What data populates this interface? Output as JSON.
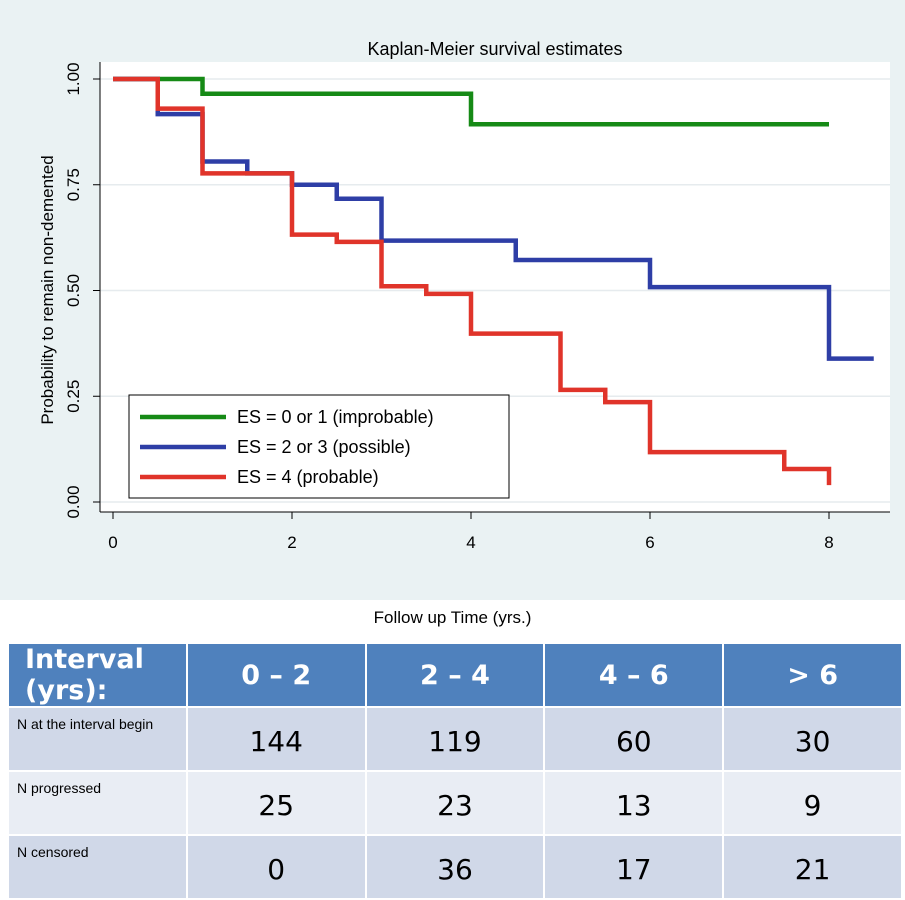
{
  "chart_data": {
    "type": "line",
    "step": true,
    "title": "Kaplan-Meier survival estimates",
    "xlabel": "Follow up Time (yrs.)",
    "ylabel": "Probability to remain non-demented",
    "xlim": [
      0,
      8.5
    ],
    "ylim": [
      0,
      1
    ],
    "xticks": [
      "0",
      "2",
      "4",
      "6",
      "8"
    ],
    "xtick_values": [
      0,
      2,
      4,
      6,
      8
    ],
    "yticks": [
      "0.00",
      "0.25",
      "0.50",
      "0.75",
      "1.00"
    ],
    "ytick_values": [
      0,
      0.25,
      0.5,
      0.75,
      1.0
    ],
    "grid": "horizontal",
    "legend_position": "bottom-left",
    "series": [
      {
        "name": "ES = 0 or 1 (improbable)",
        "color": "#168a16",
        "x": [
          0,
          1,
          4,
          8
        ],
        "y": [
          1.0,
          0.965,
          0.893,
          0.893
        ]
      },
      {
        "name": "ES = 2 or 3 (possible)",
        "color": "#2e3ea6",
        "x": [
          0,
          0.5,
          1,
          1.5,
          2,
          2.5,
          3,
          4.5,
          6,
          8,
          8.5
        ],
        "y": [
          1.0,
          0.917,
          0.805,
          0.777,
          0.75,
          0.717,
          0.618,
          0.572,
          0.508,
          0.339,
          0.339
        ]
      },
      {
        "name": "ES = 4 (probable)",
        "color": "#e0342a",
        "x": [
          0,
          0.5,
          1,
          2,
          2.5,
          3,
          3.5,
          4,
          5,
          5.5,
          6,
          7.5,
          8,
          8
        ],
        "y": [
          1.0,
          0.93,
          0.777,
          0.632,
          0.615,
          0.51,
          0.492,
          0.398,
          0.265,
          0.236,
          0.118,
          0.078,
          0.078,
          0.04
        ]
      }
    ]
  },
  "table": {
    "headers": [
      "Interval (yrs):",
      "0 – 2",
      "2 – 4",
      "4 – 6",
      "> 6"
    ],
    "rows": [
      {
        "label": "N at the interval begin",
        "values": [
          "144",
          "119",
          "60",
          "30"
        ]
      },
      {
        "label": "N progressed",
        "values": [
          "25",
          "23",
          "13",
          "9"
        ]
      },
      {
        "label": "N censored",
        "values": [
          "0",
          "36",
          "17",
          "21"
        ]
      }
    ]
  }
}
